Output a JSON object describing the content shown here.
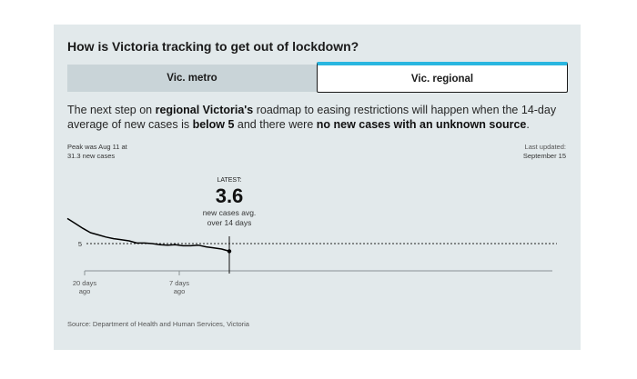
{
  "title": "How is Victoria tracking to get out of lockdown?",
  "tabs": [
    {
      "label": "Vic. metro",
      "active": false
    },
    {
      "label": "Vic. regional",
      "active": true
    }
  ],
  "description": {
    "p1": "The next step on ",
    "b1": "regional Victoria's",
    "p2": " roadmap to easing restrictions will happen when the 14-day average of new cases is ",
    "b2": "below 5",
    "p3": " and there were ",
    "b3": "no new cases with an unknown source",
    "p4": "."
  },
  "peak": {
    "line1": "Peak was Aug 11 at",
    "line2": "31.3 new cases"
  },
  "last_updated": {
    "label": "Last updated:",
    "date": "September 15"
  },
  "latest": {
    "label": "LATEST:",
    "value": "3.6",
    "line1": "new cases avg.",
    "line2": "over 14 days"
  },
  "source": "Source: Department of Health and Human Services, Victoria",
  "colors": {
    "accent": "#29b6e0",
    "card_bg": "#e2e9eb",
    "tab_inactive": "#c9d4d8",
    "line": "#000000"
  },
  "chart_data": {
    "type": "line",
    "series": [
      {
        "values": [
          9.6,
          8.7,
          7.8,
          7.0,
          6.6,
          6.2,
          5.9,
          5.7,
          5.5,
          5.1,
          5.1,
          5.0,
          4.8,
          4.7,
          4.8,
          4.6,
          4.6,
          4.7,
          4.4,
          4.2,
          4.0,
          3.6
        ]
      }
    ],
    "x_tick_labels": [
      {
        "days_ago": 20,
        "line1": "20 days",
        "line2": "ago"
      },
      {
        "days_ago": 7,
        "line1": "7 days",
        "line2": "ago"
      }
    ],
    "threshold": {
      "value": 5,
      "label": "5"
    },
    "latest_value": 3.6,
    "y_range": [
      0,
      10
    ],
    "x_range_days_ago": [
      21,
      0
    ]
  }
}
